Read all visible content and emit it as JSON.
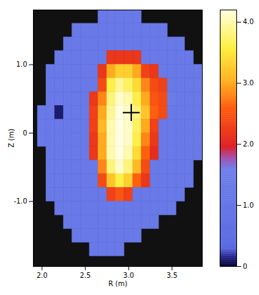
{
  "chart_data": {
    "type": "heatmap",
    "x_label": "R (m)",
    "y_label": "Z (m)",
    "xlim": [
      1.9,
      3.85
    ],
    "ylim": [
      -1.95,
      1.8
    ],
    "xticks": [
      {
        "value": 2,
        "label": "2.0"
      },
      {
        "value": 2.5,
        "label": "2.5"
      },
      {
        "value": 3,
        "label": "3.0"
      },
      {
        "value": 3.5,
        "label": "3.5"
      }
    ],
    "yticks": [
      {
        "value": -1,
        "label": "-1.0"
      },
      0,
      {
        "value": 1,
        "label": "1.0"
      }
    ],
    "x": [
      2.0,
      2.1,
      2.2,
      2.3,
      2.4,
      2.5,
      2.6,
      2.7,
      2.8,
      2.9,
      3.0,
      3.1,
      3.2,
      3.3,
      3.4,
      3.5,
      3.6,
      3.7,
      3.8
    ],
    "y": [
      1.7,
      1.5,
      1.3,
      1.1,
      0.9,
      0.7,
      0.5,
      0.3,
      0.1,
      -0.1,
      -0.3,
      -0.5,
      -0.7,
      -0.9,
      -1.1,
      -1.3,
      -1.5,
      -1.7
    ],
    "values": [
      [
        null,
        null,
        null,
        null,
        null,
        null,
        null,
        1.2,
        1.2,
        1.2,
        1.2,
        1.2,
        null,
        null,
        null,
        null,
        null,
        null,
        null
      ],
      [
        null,
        null,
        null,
        null,
        1.2,
        1.2,
        1.2,
        1.2,
        1.2,
        1.2,
        1.2,
        1.2,
        1.2,
        1.2,
        1.2,
        null,
        null,
        null,
        null
      ],
      [
        null,
        null,
        null,
        1.2,
        1.2,
        1.2,
        1.2,
        1.2,
        1.2,
        1.2,
        1.2,
        1.2,
        1.2,
        1.2,
        1.2,
        1.2,
        1.2,
        null,
        null
      ],
      [
        null,
        null,
        1.2,
        1.2,
        1.2,
        1.2,
        1.2,
        1.2,
        2.2,
        2.2,
        2.2,
        2.2,
        1.2,
        1.2,
        1.2,
        1.2,
        1.2,
        1.2,
        null
      ],
      [
        null,
        1.2,
        1.2,
        1.2,
        1.2,
        1.2,
        1.2,
        2.2,
        3.0,
        3.3,
        3.3,
        3.0,
        2.3,
        2.2,
        1.2,
        1.2,
        1.2,
        1.2,
        1.2
      ],
      [
        null,
        1.2,
        1.2,
        1.2,
        1.2,
        1.2,
        1.2,
        2.4,
        3.6,
        3.9,
        3.7,
        3.4,
        2.8,
        2.4,
        2.3,
        1.2,
        1.2,
        1.2,
        1.2
      ],
      [
        null,
        1.2,
        1.2,
        1.2,
        1.2,
        1.2,
        2.2,
        2.8,
        3.8,
        4.1,
        4.0,
        3.6,
        3.0,
        2.5,
        2.4,
        1.4,
        1.2,
        1.2,
        1.2
      ],
      [
        1.2,
        1.2,
        0.1,
        1.2,
        1.2,
        1.2,
        2.3,
        3.0,
        3.9,
        4.2,
        4.1,
        3.8,
        3.2,
        2.6,
        2.4,
        1.2,
        1.2,
        1.2,
        1.2
      ],
      [
        1.2,
        1.2,
        1.2,
        1.2,
        1.2,
        1.2,
        2.3,
        3.1,
        4.0,
        4.2,
        4.1,
        3.7,
        3.0,
        2.3,
        1.2,
        1.2,
        1.2,
        1.2,
        1.2
      ],
      [
        1.2,
        1.2,
        1.2,
        1.2,
        1.2,
        1.2,
        2.2,
        3.0,
        4.0,
        4.2,
        4.1,
        3.6,
        2.8,
        2.2,
        1.2,
        1.2,
        1.2,
        1.2,
        1.2
      ],
      [
        null,
        1.2,
        1.2,
        1.2,
        1.2,
        1.2,
        2.2,
        3.0,
        4.0,
        4.2,
        4.0,
        3.4,
        2.6,
        2.1,
        1.2,
        1.2,
        1.2,
        1.2,
        1.2
      ],
      [
        null,
        1.2,
        1.2,
        1.2,
        1.2,
        1.2,
        1.2,
        2.8,
        3.8,
        4.1,
        3.8,
        3.1,
        2.4,
        1.2,
        1.2,
        1.2,
        1.2,
        1.2,
        null
      ],
      [
        null,
        1.2,
        1.2,
        1.2,
        1.2,
        1.2,
        1.2,
        2.4,
        3.2,
        3.6,
        3.3,
        2.6,
        2.2,
        1.2,
        1.2,
        1.2,
        1.2,
        1.2,
        null
      ],
      [
        null,
        1.2,
        1.2,
        1.2,
        1.2,
        1.2,
        1.2,
        1.2,
        2.3,
        2.5,
        2.3,
        1.2,
        1.2,
        1.2,
        1.2,
        1.2,
        1.2,
        null,
        null
      ],
      [
        null,
        null,
        1.2,
        1.2,
        1.2,
        1.2,
        1.2,
        1.2,
        1.2,
        1.2,
        1.2,
        1.2,
        1.2,
        1.2,
        1.2,
        1.2,
        null,
        null,
        null
      ],
      [
        null,
        null,
        null,
        1.2,
        1.2,
        1.2,
        1.2,
        1.2,
        1.2,
        1.2,
        1.2,
        1.2,
        1.2,
        1.2,
        null,
        null,
        null,
        null,
        null
      ],
      [
        null,
        null,
        null,
        null,
        1.2,
        1.2,
        1.2,
        1.2,
        1.2,
        1.2,
        1.2,
        1.2,
        null,
        null,
        null,
        null,
        null,
        null,
        null
      ],
      [
        null,
        null,
        null,
        null,
        null,
        null,
        1.2,
        1.2,
        1.2,
        1.2,
        null,
        null,
        null,
        null,
        null,
        null,
        null,
        null,
        null
      ]
    ],
    "colorbar": {
      "range": [
        0,
        4.2
      ],
      "ticks": [
        0,
        {
          "value": 1,
          "label": "1.0"
        },
        {
          "value": 2,
          "label": "2.0"
        },
        {
          "value": 3,
          "label": "3.0"
        },
        {
          "value": 4,
          "label": "4.0"
        }
      ]
    },
    "points": {
      "x": [
        3.03
      ],
      "y": [
        0.3
      ],
      "marker": "plus",
      "color": "#000000"
    }
  }
}
